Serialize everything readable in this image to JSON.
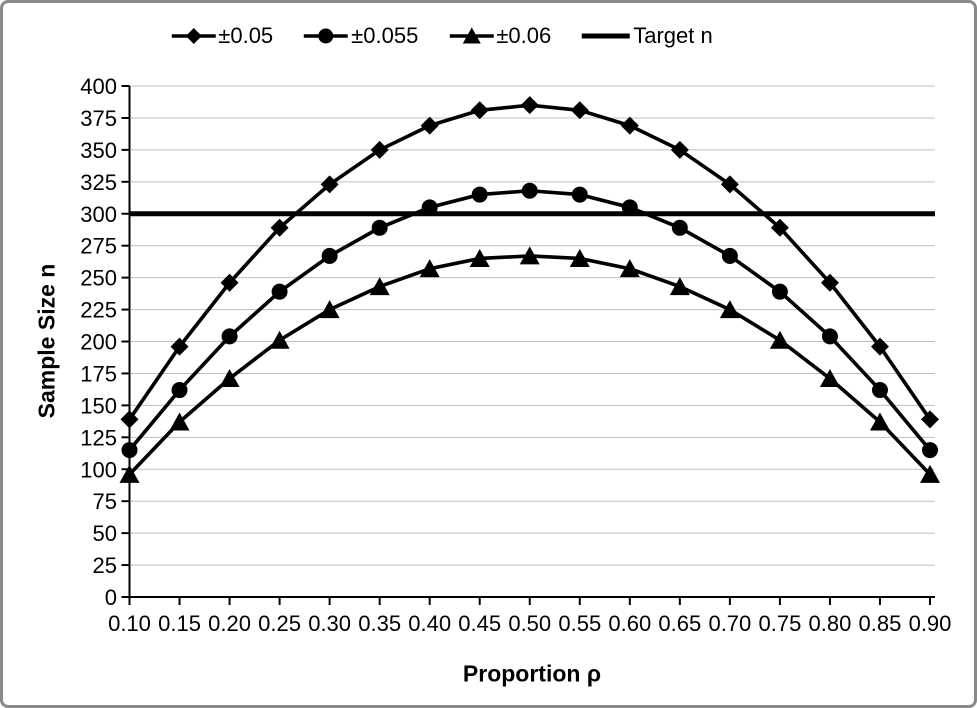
{
  "frame": {
    "border_color": "#8a8a8a",
    "background_color": "#ffffff"
  },
  "colors": {
    "series_line": "#000000",
    "gridline": "#bfbfbf",
    "axis": "#000000",
    "text": "#000000"
  },
  "legend": {
    "position": "top-center",
    "icons": [
      "diamond-marker-icon",
      "circle-marker-icon",
      "triangle-marker-icon",
      "thick-line-icon"
    ]
  },
  "chart_data": {
    "type": "line",
    "title": "",
    "xlabel": "Proportion ρ",
    "ylabel": "Sample Size n",
    "x": [
      0.1,
      0.15,
      0.2,
      0.25,
      0.3,
      0.35,
      0.4,
      0.45,
      0.5,
      0.55,
      0.6,
      0.65,
      0.7,
      0.75,
      0.8,
      0.85,
      0.9
    ],
    "x_tick_labels": [
      "0.10",
      "0.15",
      "0.20",
      "0.25",
      "0.30",
      "0.35",
      "0.40",
      "0.45",
      "0.50",
      "0.55",
      "0.60",
      "0.65",
      "0.70",
      "0.75",
      "0.80",
      "0.85",
      "0.90"
    ],
    "ylim": [
      0,
      400
    ],
    "ytick_step": 25,
    "grid": "horizontal",
    "legend_position": "top",
    "series": [
      {
        "name": "±0.05",
        "marker": "diamond",
        "values": [
          139,
          196,
          246,
          289,
          323,
          350,
          369,
          381,
          385,
          381,
          369,
          350,
          323,
          289,
          246,
          196,
          139
        ]
      },
      {
        "name": "±0.055",
        "marker": "circle",
        "values": [
          115,
          162,
          204,
          239,
          267,
          289,
          305,
          315,
          318,
          315,
          305,
          289,
          267,
          239,
          204,
          162,
          115
        ]
      },
      {
        "name": "±0.06",
        "marker": "triangle",
        "values": [
          96,
          137,
          171,
          201,
          225,
          243,
          257,
          265,
          267,
          265,
          257,
          243,
          225,
          201,
          171,
          137,
          96
        ]
      }
    ],
    "target_line": {
      "name": "Target n",
      "value": 300
    }
  }
}
